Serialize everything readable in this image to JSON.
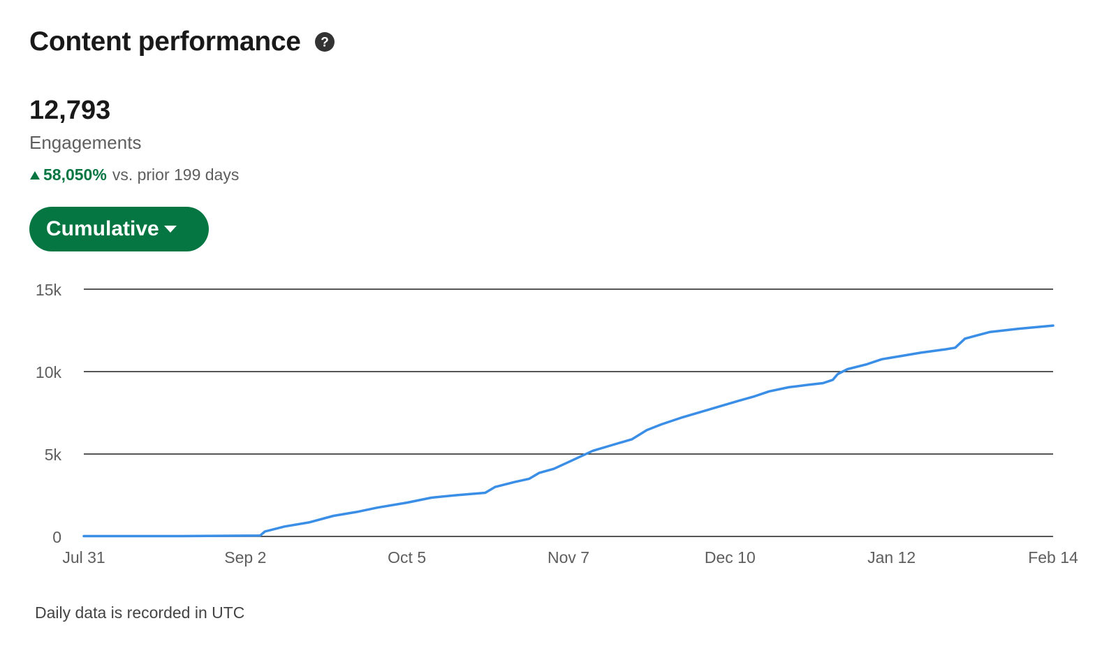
{
  "header": {
    "title": "Content performance",
    "help_icon": "question-circle-icon"
  },
  "metric": {
    "value": "12,793",
    "label": "Engagements"
  },
  "change": {
    "icon": "triangle-up-icon",
    "percent": "58,050%",
    "comparison": "vs. prior 199 days"
  },
  "dropdown": {
    "label": "Cumulative",
    "icon": "caret-down-icon"
  },
  "colors": {
    "accent_green": "#057642",
    "line_blue": "#3a8ee6",
    "grid": "#1f1f1f"
  },
  "footnote": "Daily data is recorded in UTC",
  "chart_data": {
    "type": "line",
    "title": "",
    "xlabel": "",
    "ylabel": "",
    "ylim": [
      0,
      15000
    ],
    "y_ticks": [
      {
        "value": 0,
        "label": "0"
      },
      {
        "value": 5000,
        "label": "5k"
      },
      {
        "value": 10000,
        "label": "10k"
      },
      {
        "value": 15000,
        "label": "15k"
      }
    ],
    "x_range": [
      "2023-07-31",
      "2024-02-14"
    ],
    "x_ticks": [
      {
        "date": "2023-07-31",
        "label": "Jul 31"
      },
      {
        "date": "2023-09-02",
        "label": "Sep 2"
      },
      {
        "date": "2023-10-05",
        "label": "Oct 5"
      },
      {
        "date": "2023-11-07",
        "label": "Nov 7"
      },
      {
        "date": "2023-12-10",
        "label": "Dec 10"
      },
      {
        "date": "2024-01-12",
        "label": "Jan 12"
      },
      {
        "date": "2024-02-14",
        "label": "Feb 14"
      }
    ],
    "grid": true,
    "series": [
      {
        "color": "#3a8ee6",
        "points": [
          [
            "2023-07-31",
            20
          ],
          [
            "2023-08-20",
            20
          ],
          [
            "2023-09-05",
            50
          ],
          [
            "2023-09-06",
            300
          ],
          [
            "2023-09-10",
            600
          ],
          [
            "2023-09-15",
            850
          ],
          [
            "2023-09-20",
            1250
          ],
          [
            "2023-09-25",
            1500
          ],
          [
            "2023-09-29",
            1750
          ],
          [
            "2023-10-05",
            2050
          ],
          [
            "2023-10-10",
            2350
          ],
          [
            "2023-10-15",
            2500
          ],
          [
            "2023-10-21",
            2650
          ],
          [
            "2023-10-23",
            3000
          ],
          [
            "2023-10-27",
            3300
          ],
          [
            "2023-10-30",
            3500
          ],
          [
            "2023-11-01",
            3850
          ],
          [
            "2023-11-04",
            4100
          ],
          [
            "2023-11-08",
            4650
          ],
          [
            "2023-11-12",
            5200
          ],
          [
            "2023-11-16",
            5550
          ],
          [
            "2023-11-20",
            5900
          ],
          [
            "2023-11-23",
            6450
          ],
          [
            "2023-11-26",
            6800
          ],
          [
            "2023-11-30",
            7200
          ],
          [
            "2023-12-04",
            7550
          ],
          [
            "2023-12-08",
            7900
          ],
          [
            "2023-12-12",
            8250
          ],
          [
            "2023-12-15",
            8500
          ],
          [
            "2023-12-18",
            8800
          ],
          [
            "2023-12-22",
            9050
          ],
          [
            "2023-12-26",
            9200
          ],
          [
            "2023-12-29",
            9300
          ],
          [
            "2023-12-31",
            9500
          ],
          [
            "2024-01-01",
            9850
          ],
          [
            "2024-01-03",
            10150
          ],
          [
            "2024-01-07",
            10450
          ],
          [
            "2024-01-10",
            10750
          ],
          [
            "2024-01-14",
            10950
          ],
          [
            "2024-01-18",
            11150
          ],
          [
            "2024-01-23",
            11350
          ],
          [
            "2024-01-25",
            11450
          ],
          [
            "2024-01-27",
            12000
          ],
          [
            "2024-02-01",
            12400
          ],
          [
            "2024-02-07",
            12600
          ],
          [
            "2024-02-14",
            12793
          ]
        ]
      }
    ]
  }
}
